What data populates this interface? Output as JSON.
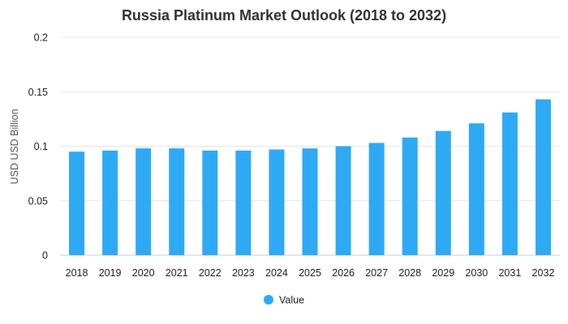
{
  "chart_data": {
    "type": "bar",
    "title": "Russia Platinum Market Outlook (2018 to 2032)",
    "xlabel": "",
    "ylabel": "USD USD Billion",
    "categories": [
      "2018",
      "2019",
      "2020",
      "2021",
      "2022",
      "2023",
      "2024",
      "2025",
      "2026",
      "2027",
      "2028",
      "2029",
      "2030",
      "2031",
      "2032"
    ],
    "series": [
      {
        "name": "Value",
        "color": "#2eaaf5",
        "values": [
          0.095,
          0.096,
          0.098,
          0.098,
          0.096,
          0.096,
          0.097,
          0.098,
          0.1,
          0.103,
          0.108,
          0.114,
          0.121,
          0.131,
          0.143
        ]
      }
    ],
    "ylim": [
      0,
      0.2
    ],
    "yticks": [
      0,
      0.05,
      0.1,
      0.15,
      0.2
    ],
    "ytick_labels": [
      "0",
      "0.05",
      "0.1",
      "0.15",
      "0.2"
    ],
    "grid": true,
    "legend_position": "bottom-center"
  }
}
